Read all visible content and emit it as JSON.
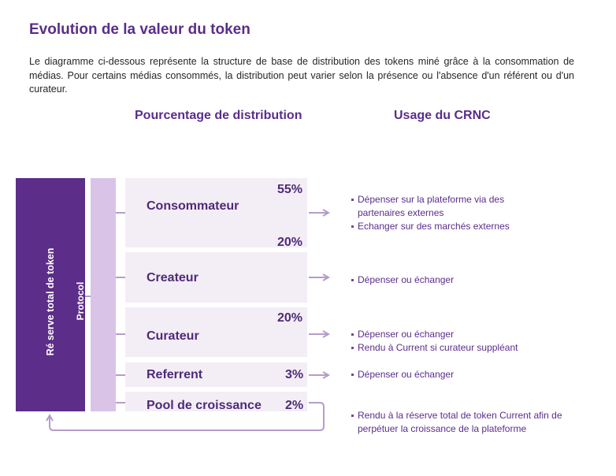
{
  "title": "Evolution de la valeur du token",
  "intro": "Le diagramme ci-dessous représente la structure de base de distribution des tokens miné grâce à la consommation de médias. Pour certains médias consommés, la distribution peut varier selon la présence ou l'absence d'un référent ou d'un curateur.",
  "headers": {
    "distribution": "Pourcentage de distribution",
    "usage": "Usage du CRNC"
  },
  "sources": {
    "reserve": "Ré serve total de token",
    "protocol": "Protocol"
  },
  "recipients": [
    {
      "label": "Consommateur",
      "percents": [
        "55%",
        "20%"
      ]
    },
    {
      "label": "Createur",
      "percents": []
    },
    {
      "label": "Curateur",
      "percents": [
        "20%"
      ]
    },
    {
      "label": "Referrent",
      "percents": [
        "3%"
      ]
    },
    {
      "label": "Pool de croissance",
      "percents": [
        "2%"
      ]
    }
  ],
  "usages": [
    [
      "Dépenser sur la plateforme via des partenaires externes",
      "Echanger sur des marchés externes"
    ],
    [
      "Dépenser ou échanger"
    ],
    [
      "Dépenser ou échanger",
      "Rendu à Current  si curateur suppléant"
    ],
    [
      "Dépenser ou échanger"
    ],
    [
      "Rendu à la réserve total de token Current afin de perpétuer la croissance de la plateforme"
    ]
  ],
  "colors": {
    "dark_purple": "#5c2e8a",
    "light_purple": "#d9c3e6",
    "box_fill": "#f3eef5",
    "arrow": "#b59ccc",
    "text_purple": "#5a2d8c"
  }
}
